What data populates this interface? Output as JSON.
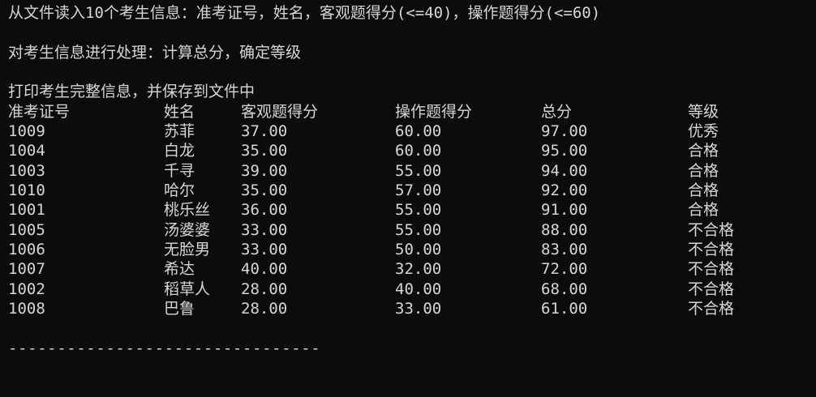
{
  "terminal": {
    "background_color": "#0c0c0c",
    "text_color": "#d6d6d6",
    "intro_lines": [
      "从文件读入10个考生信息：准考证号，姓名，客观题得分(<=40)，操作题得分(<=60)",
      "对考生信息进行处理：计算总分，确定等级",
      "打印考生完整信息，并保存到文件中"
    ],
    "table": {
      "headers": [
        "准考证号",
        "姓名",
        "客观题得分",
        "操作题得分",
        "总分",
        "等级"
      ],
      "rows": [
        [
          "1009",
          "苏菲",
          "37.00",
          "60.00",
          "97.00",
          "优秀"
        ],
        [
          "1004",
          "白龙",
          "35.00",
          "60.00",
          "95.00",
          "合格"
        ],
        [
          "1003",
          "千寻",
          "39.00",
          "55.00",
          "94.00",
          "合格"
        ],
        [
          "1010",
          "哈尔",
          "35.00",
          "57.00",
          "92.00",
          "合格"
        ],
        [
          "1001",
          "桃乐丝",
          "36.00",
          "55.00",
          "91.00",
          "合格"
        ],
        [
          "1005",
          "汤婆婆",
          "33.00",
          "55.00",
          "88.00",
          "不合格"
        ],
        [
          "1006",
          "无脸男",
          "33.00",
          "50.00",
          "83.00",
          "不合格"
        ],
        [
          "1007",
          "希达",
          "40.00",
          "32.00",
          "72.00",
          "不合格"
        ],
        [
          "1002",
          "稻草人",
          "28.00",
          "40.00",
          "68.00",
          "不合格"
        ],
        [
          "1008",
          "巴鲁",
          "28.00",
          "33.00",
          "61.00",
          "不合格"
        ]
      ]
    },
    "separator": "--------------------------------"
  }
}
